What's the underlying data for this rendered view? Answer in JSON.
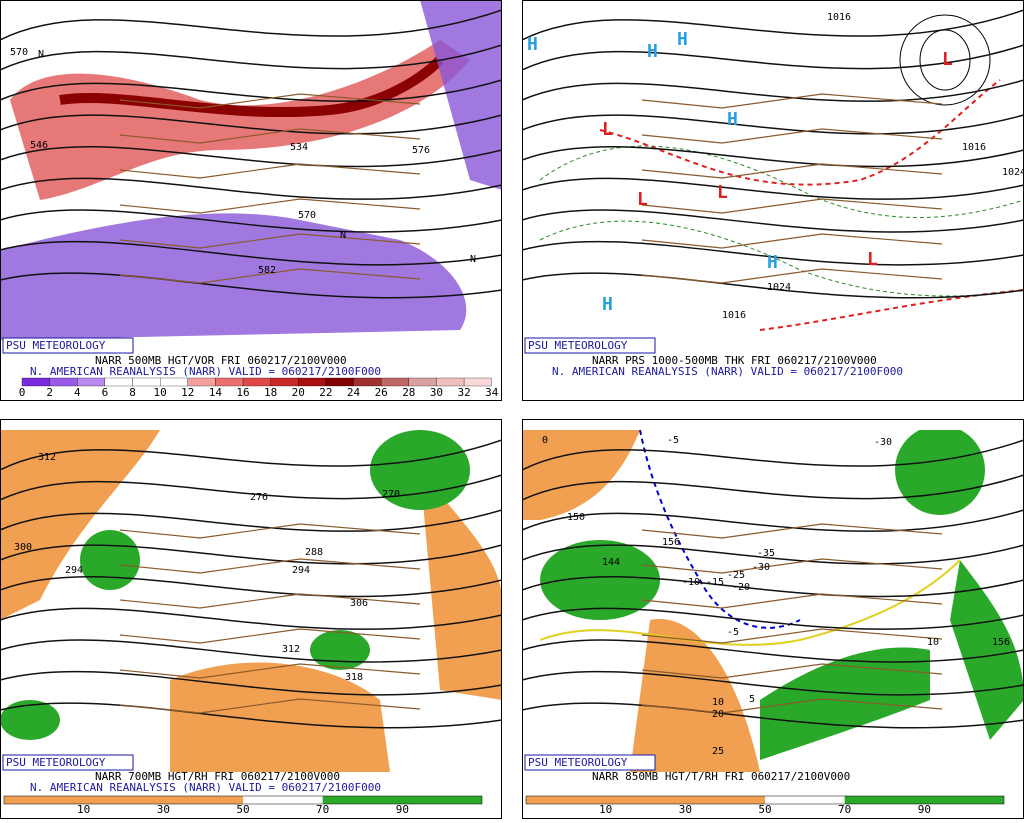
{
  "panels": [
    {
      "badge": "PSU METEOROLOGY",
      "caption": "NARR 500MB HGT/VOR FRI 060217/2100V000",
      "subcaption": "N. AMERICAN REANALYSIS (NARR) VALID = 060217/2100F000",
      "scale": [
        0,
        2,
        4,
        6,
        8,
        10,
        12,
        14,
        16,
        18,
        20,
        22,
        24,
        26,
        28,
        30,
        32,
        34
      ],
      "labels": [
        "570",
        "546",
        "534",
        "576",
        "570",
        "582",
        "N",
        "N",
        "N"
      ]
    },
    {
      "badge": "PSU METEOROLOGY",
      "caption": "NARR PRS 1000-500MB THK FRI 060217/2100V000",
      "subcaption": "N. AMERICAN REANALYSIS (NARR) VALID = 060217/2100F000",
      "scale": [],
      "labels": [
        "1016",
        "1024",
        "1024",
        "1016",
        "1016",
        "H",
        "H",
        "H",
        "H",
        "H",
        "H",
        "L",
        "L",
        "L",
        "L",
        "L"
      ]
    },
    {
      "badge": "PSU METEOROLOGY",
      "caption": "NARR 700MB HGT/RH FRI 060217/2100V000",
      "subcaption": "N. AMERICAN REANALYSIS (NARR) VALID = 060217/2100F000",
      "scale": [
        10,
        30,
        50,
        70,
        90
      ],
      "labels": [
        "312",
        "300",
        "294",
        "276",
        "270",
        "288",
        "294",
        "306",
        "312",
        "318"
      ]
    },
    {
      "badge": "PSU METEOROLOGY",
      "caption": "NARR 850MB HGT/T/RH FRI 060217/2100V000",
      "subcaption": "",
      "scale": [
        10,
        30,
        50,
        70,
        90
      ],
      "labels": [
        "0",
        "-5",
        "-30",
        "150",
        "156",
        "144",
        "-35",
        "-25",
        "-30",
        "-10",
        "-15",
        "-20",
        "-5",
        "10",
        "20",
        "25",
        "5",
        "156",
        "10"
      ]
    }
  ]
}
